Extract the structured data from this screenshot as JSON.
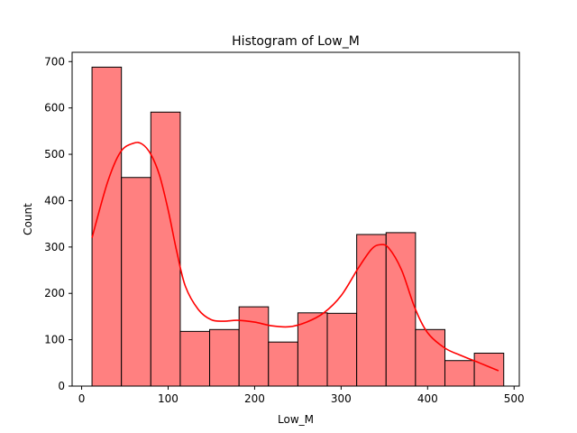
{
  "chart_data": {
    "type": "bar",
    "title": "Histogram of Low_M",
    "xlabel": "Low_M",
    "ylabel": "Count",
    "xlim": [
      -11,
      506
    ],
    "ylim": [
      0,
      720
    ],
    "xticks": [
      0,
      100,
      200,
      300,
      400,
      500
    ],
    "yticks": [
      0,
      100,
      200,
      300,
      400,
      500,
      600,
      700
    ],
    "bin_edges": [
      12,
      46,
      80,
      114,
      148,
      182,
      216,
      250,
      284,
      318,
      352,
      386,
      420,
      454,
      488
    ],
    "values": [
      688,
      450,
      591,
      118,
      122,
      171,
      95,
      158,
      157,
      327,
      331,
      122,
      55,
      71
    ],
    "kde": {
      "x": [
        12,
        30,
        45,
        60,
        70,
        80,
        90,
        100,
        110,
        120,
        135,
        150,
        165,
        180,
        200,
        220,
        240,
        260,
        280,
        300,
        320,
        335,
        345,
        355,
        370,
        385,
        400,
        420,
        440,
        460,
        482
      ],
      "y": [
        320,
        440,
        505,
        524,
        522,
        500,
        455,
        380,
        290,
        215,
        165,
        143,
        140,
        142,
        138,
        130,
        128,
        138,
        158,
        195,
        255,
        295,
        305,
        298,
        250,
        170,
        115,
        82,
        65,
        50,
        33
      ]
    },
    "grid": false,
    "colors": {
      "bar_fill": "#ff8080",
      "bar_edge": "#000000",
      "kde_line": "#ff0000"
    }
  }
}
